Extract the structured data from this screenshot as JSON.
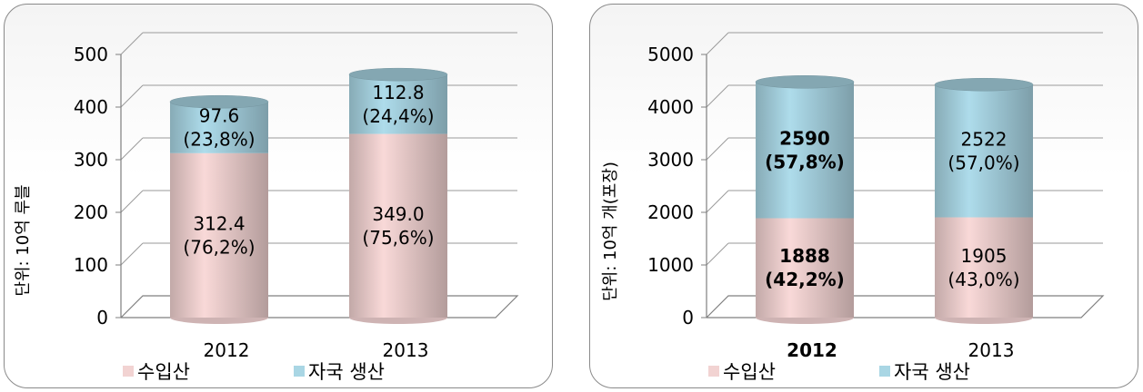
{
  "chart_data": [
    {
      "type": "bar",
      "stacked": true,
      "ylabel": "단위: 10억 루블",
      "ylim": [
        0,
        500
      ],
      "yticks": [
        "0",
        "100",
        "200",
        "300",
        "400",
        "500"
      ],
      "categories": [
        "2012",
        "2013"
      ],
      "series": [
        {
          "name": "수입산",
          "color": "#f2d3d2",
          "values": [
            312.4,
            349.0
          ],
          "labels": [
            "312.4",
            "349.0"
          ],
          "pct": [
            "(76,2%)",
            "(75,6%)"
          ],
          "bold": [
            false,
            false
          ]
        },
        {
          "name": "자국 생산",
          "color": "#a9d6e4",
          "values": [
            97.6,
            112.8
          ],
          "labels": [
            "97.6",
            "112.8"
          ],
          "pct": [
            "(23,8%)",
            "(24,4%)"
          ],
          "bold": [
            false,
            false
          ]
        }
      ],
      "legend": "bottom",
      "grid": true,
      "category_bold": [
        false,
        false
      ]
    },
    {
      "type": "bar",
      "stacked": true,
      "ylabel": "단위: 10억 개(포장)",
      "ylim": [
        0,
        5000
      ],
      "yticks": [
        "0",
        "1000",
        "2000",
        "3000",
        "4000",
        "5000"
      ],
      "categories": [
        "2012",
        "2013"
      ],
      "series": [
        {
          "name": "수입산",
          "color": "#f2d3d2",
          "values": [
            1888,
            1905
          ],
          "labels": [
            "1888",
            "1905"
          ],
          "pct": [
            "(42,2%)",
            "(43,0%)"
          ],
          "bold": [
            true,
            false
          ]
        },
        {
          "name": "자국 생산",
          "color": "#a9d6e4",
          "values": [
            2590,
            2522
          ],
          "labels": [
            "2590",
            "2522"
          ],
          "pct": [
            "(57,8%)",
            "(57,0%)"
          ],
          "bold": [
            true,
            false
          ]
        }
      ],
      "legend": "bottom",
      "grid": true,
      "category_bold": [
        true,
        false
      ]
    }
  ]
}
